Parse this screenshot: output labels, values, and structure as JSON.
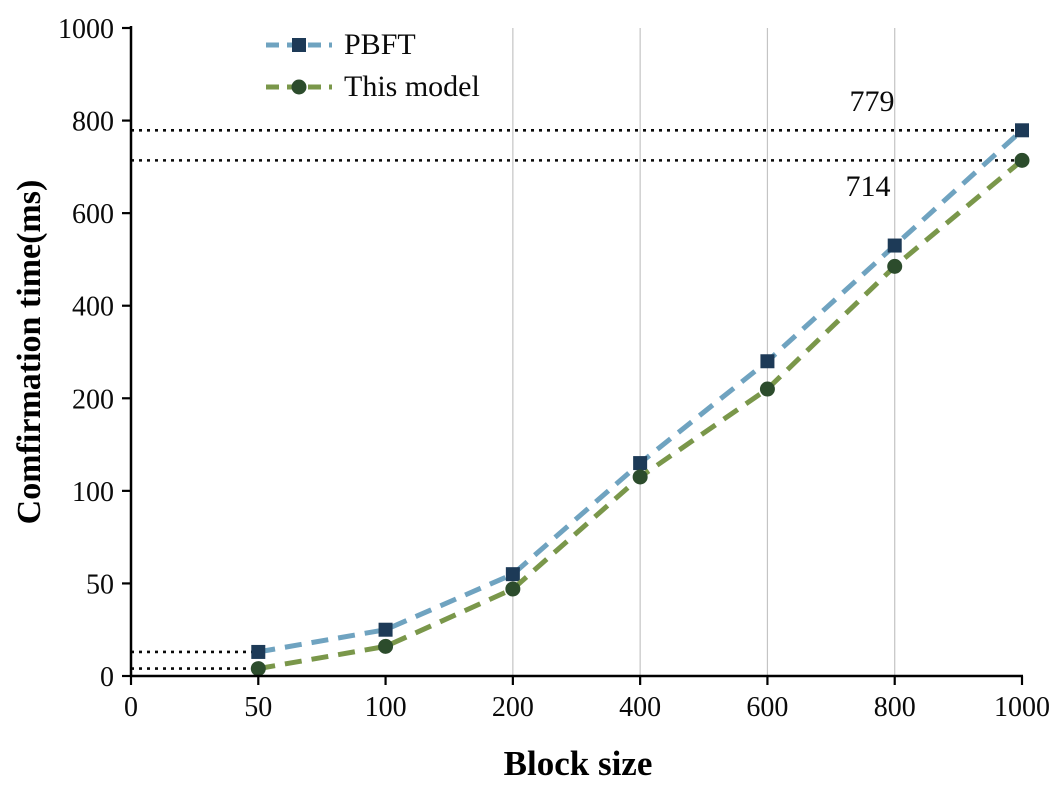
{
  "chart_data": {
    "type": "line",
    "title": "",
    "xlabel": "Block size",
    "ylabel": "Comfirmation time(ms)",
    "x_ticks": [
      0,
      50,
      100,
      200,
      400,
      600,
      800,
      1000
    ],
    "y_ticks": [
      0,
      50,
      100,
      200,
      400,
      600,
      800,
      1000
    ],
    "axis_scale": "ordinal-ticks-evenly-spaced",
    "x": [
      50,
      100,
      200,
      400,
      600,
      800,
      1000
    ],
    "series": [
      {
        "name": "PBFT",
        "values": [
          13,
          25,
          55,
          130,
          280,
          530,
          779
        ],
        "line_color": "#6fa3c0",
        "marker_color": "#1d3a57",
        "marker": "square",
        "line_style": "dashed"
      },
      {
        "name": "This model",
        "values": [
          4,
          16,
          47,
          115,
          220,
          485,
          714
        ],
        "line_color": "#7a974a",
        "marker_color": "#2c4c2c",
        "marker": "circle",
        "line_style": "dashed"
      }
    ],
    "annotations": [
      {
        "label": "779",
        "value": 779,
        "series": "PBFT"
      },
      {
        "label": "714",
        "value": 714,
        "series": "This model"
      }
    ],
    "guide_lines": [
      {
        "y": 779,
        "x_from": 0,
        "x_to": 1000
      },
      {
        "y": 714,
        "x_from": 0,
        "x_to": 1000
      },
      {
        "y": 13,
        "x_from": 0,
        "x_to": 50
      },
      {
        "y": 4,
        "x_from": 0,
        "x_to": 50
      }
    ],
    "grid_x_values": [
      200,
      400,
      600,
      800
    ],
    "grid_color": "#c4c4c4",
    "guide_color": "#0a0a0a",
    "axis_color": "#000000",
    "legend_position": "top-left",
    "ylim": [
      0,
      1000
    ],
    "xlim": [
      0,
      1000
    ]
  }
}
